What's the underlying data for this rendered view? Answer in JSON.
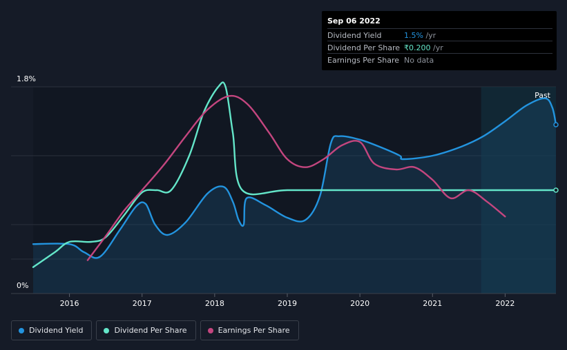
{
  "tooltip": {
    "date": "Sep 06 2022",
    "rows": [
      {
        "label": "Dividend Yield",
        "value": "1.5%",
        "suffix": " /yr",
        "color": "#2394df"
      },
      {
        "label": "Dividend Per Share",
        "value": "₹0.200",
        "suffix": " /yr",
        "color": "#64e6c9"
      },
      {
        "label": "Earnings Per Share",
        "value": "No data",
        "suffix": ""
      }
    ]
  },
  "legend": [
    {
      "label": "Dividend Yield",
      "color": "#2394df"
    },
    {
      "label": "Dividend Per Share",
      "color": "#64e6c9"
    },
    {
      "label": "Earnings Per Share",
      "color": "#c4467f"
    }
  ],
  "chart_data": {
    "type": "line",
    "title": "",
    "xlabel": "",
    "ylabel": "",
    "xlim": [
      2015.5,
      2022.7
    ],
    "ylim": [
      0,
      1.8
    ],
    "y_tick_labels": [
      "0%",
      "1.8%"
    ],
    "x_ticks": [
      2016,
      2017,
      2018,
      2019,
      2020,
      2021,
      2022
    ],
    "x_tick_labels": [
      "2016",
      "2017",
      "2018",
      "2019",
      "2020",
      "2021",
      "2022"
    ],
    "past_label": "Past",
    "past_region_start": 2021.67,
    "series": [
      {
        "name": "Dividend Yield",
        "color": "#2394df",
        "unit": "%",
        "fill": true,
        "points": [
          [
            2015.5,
            0.43
          ],
          [
            2016.0,
            0.43
          ],
          [
            2016.2,
            0.36
          ],
          [
            2016.42,
            0.32
          ],
          [
            2016.7,
            0.56
          ],
          [
            2016.92,
            0.76
          ],
          [
            2017.05,
            0.78
          ],
          [
            2017.18,
            0.6
          ],
          [
            2017.35,
            0.51
          ],
          [
            2017.6,
            0.62
          ],
          [
            2017.9,
            0.87
          ],
          [
            2018.12,
            0.93
          ],
          [
            2018.25,
            0.8
          ],
          [
            2018.33,
            0.64
          ],
          [
            2018.4,
            0.6
          ],
          [
            2018.44,
            0.83
          ],
          [
            2018.7,
            0.77
          ],
          [
            2019.0,
            0.66
          ],
          [
            2019.25,
            0.64
          ],
          [
            2019.45,
            0.85
          ],
          [
            2019.6,
            1.31
          ],
          [
            2019.72,
            1.37
          ],
          [
            2020.0,
            1.34
          ],
          [
            2020.3,
            1.27
          ],
          [
            2020.55,
            1.2
          ],
          [
            2020.6,
            1.17
          ],
          [
            2021.0,
            1.2
          ],
          [
            2021.4,
            1.28
          ],
          [
            2021.7,
            1.37
          ],
          [
            2022.0,
            1.5
          ],
          [
            2022.3,
            1.64
          ],
          [
            2022.55,
            1.7
          ],
          [
            2022.65,
            1.62
          ],
          [
            2022.7,
            1.47
          ]
        ]
      },
      {
        "name": "Dividend Per Share",
        "color": "#64e6c9",
        "unit": "₹",
        "points": [
          [
            2015.5,
            0.23
          ],
          [
            2015.8,
            0.36
          ],
          [
            2016.0,
            0.45
          ],
          [
            2016.3,
            0.45
          ],
          [
            2016.5,
            0.49
          ],
          [
            2016.75,
            0.68
          ],
          [
            2017.0,
            0.88
          ],
          [
            2017.2,
            0.9
          ],
          [
            2017.4,
            0.9
          ],
          [
            2017.65,
            1.2
          ],
          [
            2017.85,
            1.58
          ],
          [
            2018.05,
            1.8
          ],
          [
            2018.15,
            1.8
          ],
          [
            2018.25,
            1.4
          ],
          [
            2018.38,
            0.9
          ],
          [
            2019.0,
            0.9
          ],
          [
            2020.0,
            0.9
          ],
          [
            2021.0,
            0.9
          ],
          [
            2022.0,
            0.9
          ],
          [
            2022.7,
            0.9
          ]
        ]
      },
      {
        "name": "Earnings Per Share",
        "color": "#c4467f",
        "unit": "₹",
        "points": [
          [
            2016.25,
            0.29
          ],
          [
            2016.5,
            0.5
          ],
          [
            2016.75,
            0.72
          ],
          [
            2017.0,
            0.9
          ],
          [
            2017.3,
            1.12
          ],
          [
            2017.6,
            1.37
          ],
          [
            2017.9,
            1.6
          ],
          [
            2018.2,
            1.72
          ],
          [
            2018.45,
            1.65
          ],
          [
            2018.75,
            1.4
          ],
          [
            2019.0,
            1.17
          ],
          [
            2019.25,
            1.1
          ],
          [
            2019.5,
            1.17
          ],
          [
            2019.75,
            1.29
          ],
          [
            2020.0,
            1.32
          ],
          [
            2020.2,
            1.13
          ],
          [
            2020.5,
            1.08
          ],
          [
            2020.75,
            1.1
          ],
          [
            2021.0,
            0.99
          ],
          [
            2021.25,
            0.83
          ],
          [
            2021.5,
            0.9
          ],
          [
            2021.75,
            0.8
          ],
          [
            2022.0,
            0.67
          ]
        ]
      }
    ]
  }
}
